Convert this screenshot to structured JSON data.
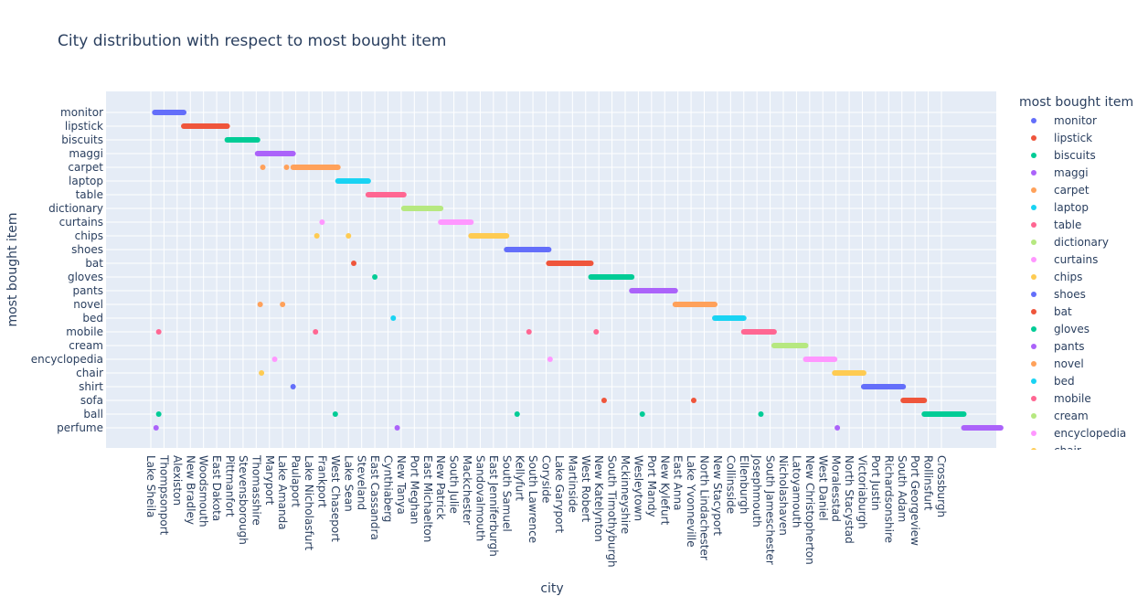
{
  "chart_data": {
    "type": "scatter",
    "title": "City distribution with respect to most bought item",
    "xlabel": "city",
    "ylabel": "most bought item",
    "legend_title": "most bought item",
    "legend_position": "right",
    "grid": true,
    "x_categories": [
      "Lake Sheila",
      "Thompsonport",
      "Alexiston",
      "New Bradley",
      "Woodsmouth",
      "East Dakota",
      "Pittmanfort",
      "Stevensborough",
      "Thomasshire",
      "Maryport",
      "Lake Amanda",
      "Paulaport",
      "Lake Nicholasfurt",
      "Frankport",
      "West Chaseport",
      "Lake Sean",
      "Steveland",
      "East Cassandra",
      "Cynthiaberg",
      "New Tanya",
      "Port Meghan",
      "East Michaelton",
      "New Patrick",
      "South Julie",
      "Mackchester",
      "Sandovalmouth",
      "East Jenniferburgh",
      "South Samuel",
      "Kellyfurt",
      "South Lawrence",
      "Coryside",
      "Lake Garyport",
      "Martinside",
      "West Robert",
      "New Katelynton",
      "South Timothyburgh",
      "Mckinneyshire",
      "Wesleytown",
      "Port Mandy",
      "New Kylefurt",
      "East Anna",
      "Lake Yvonneville",
      "North Lindachester",
      "New Stacyport",
      "Collinsside",
      "Ellenburgh",
      "Josephmouth",
      "South Jameschester",
      "Nicholashaven",
      "Latoyamouth",
      "New Christopherton",
      "West Daniel",
      "Moralesstad",
      "North Stacystad",
      "Victoriaburgh",
      "Port Justin",
      "Richardsonshire",
      "South Adam",
      "Port Georgeview",
      "Rollinsfurt",
      "Crossburgh"
    ],
    "y_categories": [
      "monitor",
      "lipstick",
      "biscuits",
      "maggi",
      "carpet",
      "laptop",
      "table",
      "dictionary",
      "curtains",
      "chips",
      "shoes",
      "bat",
      "gloves",
      "pants",
      "novel",
      "bed",
      "mobile",
      "cream",
      "encyclopedia",
      "chair",
      "shirt",
      "sofa",
      "ball",
      "perfume"
    ],
    "series": [
      {
        "name": "monitor",
        "color": "#636efa",
        "segments": [
          [
            0.3,
            2.5
          ]
        ],
        "points": []
      },
      {
        "name": "lipstick",
        "color": "#EF553B",
        "segments": [
          [
            2.5,
            5.8
          ]
        ],
        "points": []
      },
      {
        "name": "biscuits",
        "color": "#00cc96",
        "segments": [
          [
            5.8,
            8.1
          ]
        ],
        "points": []
      },
      {
        "name": "maggi",
        "color": "#ab63fa",
        "segments": [
          [
            8.1,
            10.8
          ]
        ],
        "points": []
      },
      {
        "name": "carpet",
        "color": "#FFA15A",
        "segments": [
          [
            10.8,
            14.2
          ]
        ],
        "points": [
          8.5,
          10.3
        ]
      },
      {
        "name": "laptop",
        "color": "#19d3f3",
        "segments": [
          [
            14.2,
            16.5
          ]
        ],
        "points": []
      },
      {
        "name": "table",
        "color": "#FF6692",
        "segments": [
          [
            16.5,
            19.2
          ]
        ],
        "points": []
      },
      {
        "name": "dictionary",
        "color": "#B6E880",
        "segments": [
          [
            19.2,
            22
          ]
        ],
        "points": []
      },
      {
        "name": "curtains",
        "color": "#FF97FF",
        "segments": [
          [
            22,
            24.3
          ]
        ],
        "points": [
          13
        ]
      },
      {
        "name": "chips",
        "color": "#FECB52",
        "segments": [
          [
            24.3,
            27
          ]
        ],
        "points": [
          12.6,
          15
        ]
      },
      {
        "name": "shoes",
        "color": "#636efa",
        "segments": [
          [
            27,
            30.2
          ]
        ],
        "points": []
      },
      {
        "name": "bat",
        "color": "#EF553B",
        "segments": [
          [
            30.2,
            33.4
          ]
        ],
        "points": [
          15.4
        ]
      },
      {
        "name": "gloves",
        "color": "#00cc96",
        "segments": [
          [
            33.4,
            36.5
          ]
        ],
        "points": [
          17
        ]
      },
      {
        "name": "pants",
        "color": "#ab63fa",
        "segments": [
          [
            36.5,
            39.8
          ]
        ],
        "points": []
      },
      {
        "name": "novel",
        "color": "#FFA15A",
        "segments": [
          [
            39.8,
            42.8
          ]
        ],
        "points": [
          8.3,
          10
        ]
      },
      {
        "name": "bed",
        "color": "#19d3f3",
        "segments": [
          [
            42.8,
            45
          ]
        ],
        "points": [
          18.4
        ]
      },
      {
        "name": "mobile",
        "color": "#FF6692",
        "segments": [
          [
            45,
            47.3
          ]
        ],
        "points": [
          0.6,
          12.5,
          28.7,
          33.8
        ]
      },
      {
        "name": "cream",
        "color": "#B6E880",
        "segments": [
          [
            47.3,
            49.7
          ]
        ],
        "points": []
      },
      {
        "name": "encyclopedia",
        "color": "#FF97FF",
        "segments": [
          [
            49.7,
            51.9
          ]
        ],
        "points": [
          9.4,
          30.3
        ]
      },
      {
        "name": "chair",
        "color": "#FECB52",
        "segments": [
          [
            51.9,
            54.1
          ]
        ],
        "points": [
          8.4
        ]
      },
      {
        "name": "shirt",
        "color": "#636efa",
        "segments": [
          [
            54.1,
            57.1
          ]
        ],
        "points": [
          10.8
        ]
      },
      {
        "name": "sofa",
        "color": "#EF553B",
        "segments": [
          [
            57.1,
            58.7
          ]
        ],
        "points": [
          34.4,
          41.2
        ]
      },
      {
        "name": "ball",
        "color": "#00cc96",
        "segments": [
          [
            58.7,
            61.7
          ]
        ],
        "points": [
          0.6,
          14,
          27.8,
          37.3,
          46.3
        ]
      },
      {
        "name": "perfume",
        "color": "#ab63fa",
        "segments": [
          [
            61.7,
            64.5
          ]
        ],
        "points": [
          0.4,
          18.7,
          52.1
        ]
      }
    ]
  }
}
